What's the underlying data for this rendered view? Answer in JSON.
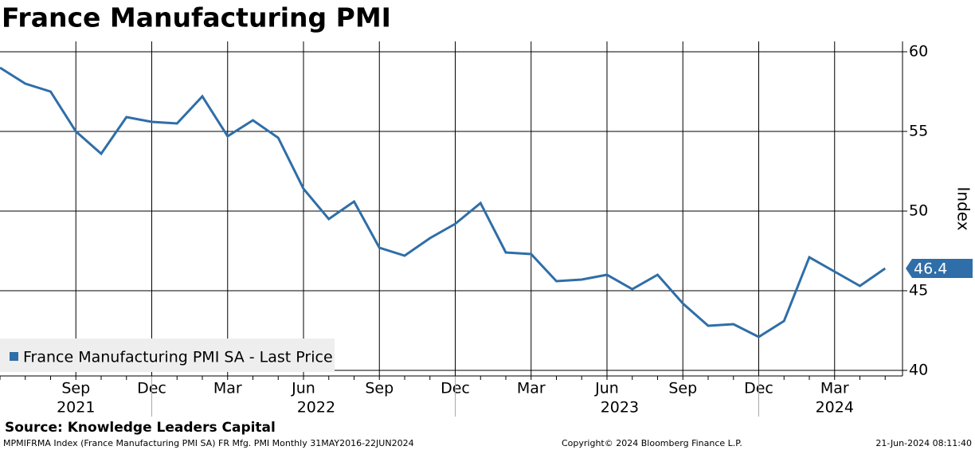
{
  "chart_data": {
    "type": "line",
    "title": "France Manufacturing PMI",
    "x": [
      "2021-06",
      "2021-07",
      "2021-08",
      "2021-09",
      "2021-10",
      "2021-11",
      "2021-12",
      "2022-01",
      "2022-02",
      "2022-03",
      "2022-04",
      "2022-05",
      "2022-06",
      "2022-07",
      "2022-08",
      "2022-09",
      "2022-10",
      "2022-11",
      "2022-12",
      "2023-01",
      "2023-02",
      "2023-03",
      "2023-04",
      "2023-05",
      "2023-06",
      "2023-07",
      "2023-08",
      "2023-09",
      "2023-10",
      "2023-11",
      "2023-12",
      "2024-01",
      "2024-02",
      "2024-03",
      "2024-04",
      "2024-05"
    ],
    "series": [
      {
        "name": "France Manufacturing PMI SA - Last Price",
        "color": "#2f6ea8",
        "values": [
          59.0,
          58.0,
          57.5,
          55.0,
          53.6,
          55.9,
          55.6,
          55.5,
          57.2,
          54.7,
          55.7,
          54.6,
          51.4,
          49.5,
          50.6,
          47.7,
          47.2,
          48.3,
          49.2,
          50.5,
          47.4,
          47.3,
          45.6,
          45.7,
          46.0,
          45.1,
          46.0,
          44.2,
          42.8,
          42.9,
          42.1,
          43.1,
          47.1,
          46.2,
          45.3,
          46.4
        ]
      }
    ],
    "xticks": [
      {
        "value": "2021-09",
        "label": "Sep"
      },
      {
        "value": "2021-12",
        "label": "Dec"
      },
      {
        "value": "2022-03",
        "label": "Mar"
      },
      {
        "value": "2022-06",
        "label": "Jun"
      },
      {
        "value": "2022-09",
        "label": "Sep"
      },
      {
        "value": "2022-12",
        "label": "Dec"
      },
      {
        "value": "2023-03",
        "label": "Mar"
      },
      {
        "value": "2023-06",
        "label": "Jun"
      },
      {
        "value": "2023-09",
        "label": "Sep"
      },
      {
        "value": "2023-12",
        "label": "Dec"
      },
      {
        "value": "2024-03",
        "label": "Mar"
      }
    ],
    "year_labels": [
      "2021",
      "2022",
      "2023",
      "2024"
    ],
    "ylim": [
      39.65,
      60.65
    ],
    "yticks": [
      40,
      45,
      50,
      55,
      60
    ],
    "y_label": "Index",
    "grid": true,
    "source": "Source: Knowledge Leaders Capital",
    "footer_left": "MPMIFRMA Index (France Manufacturing PMI SA) FR Mfg. PMI  Monthly 31MAY2016-22JUN2024",
    "footer_center": "Copyright© 2024 Bloomberg Finance L.P.",
    "footer_right": "21-Jun-2024 08:11:40"
  }
}
